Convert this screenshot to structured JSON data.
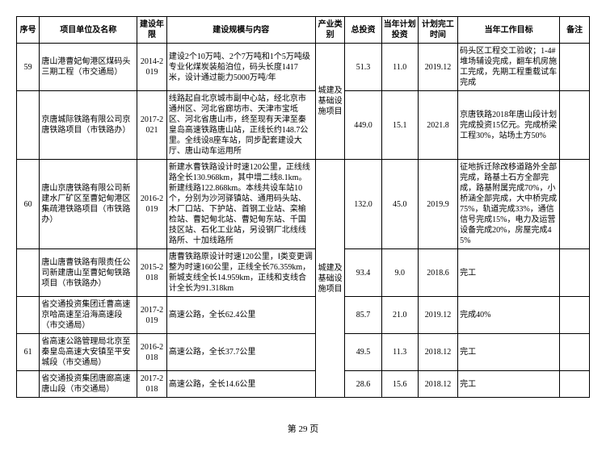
{
  "headers": {
    "seq": "序号",
    "name": "项目单位及名称",
    "year": "建设年限",
    "content": "建设规模与内容",
    "cat": "产业类别",
    "inv": "总投资",
    "plan": "当年计划投资",
    "time": "计划完工时间",
    "goal": "当年工作目标",
    "note": "备注"
  },
  "rows": [
    {
      "seq": "59",
      "name": "唐山港曹妃甸港区煤码头三期工程（市交通局）",
      "year": "2014-2019",
      "content": "建设2个10万吨、2个7万吨和1个5万吨级专业化煤炭装船泊位，码头长度1417米，设计通过能力5000万吨/年",
      "cat_rowspan": 2,
      "cat": "城建及基础设施项目",
      "inv": "51.3",
      "plan": "11.0",
      "time": "2019.12",
      "goal": "码头区工程交工验收；1-4#堆场辅设完成，翻车机房施工完成，先期工程重载试车完成"
    },
    {
      "seq": "",
      "name": "京唐城际铁路有限公司京唐铁路项目（市铁路办）",
      "year": "2017-2021",
      "content": "线路起自北京城市副中心站，经北京市通州区、河北省廊坊市、天津市宝坻区、河北省唐山市，终至现有天津至秦皇岛高速铁路唐山站，正线长约148.7公里。全线设8座车站，同步配套建设大厅、唐山动车运用所",
      "inv": "449.0",
      "plan": "15.1",
      "time": "2021.8",
      "goal": "京唐铁路2018年唐山段计划完成投资15亿元。完成桥梁工程30%，站场土方50%"
    },
    {
      "seq": "60",
      "name": "唐山京唐铁路有限公司新建水厂矿区至曹妃甸港区集疏港铁路项目（市铁路办）",
      "year": "2016-2019",
      "content": "新建水曹铁路设计时速120公里，正线线路全长130.968km，其中增二线8.1km。新建线路122.868km。本线共设车站10个，分别为沙河驿镇站、通用码头站、木厂口站、下护站、首钢工业站、栾榆检站、曹妃甸北站、曹妃甸东站、千国技区站、石化工业站，另设钢厂北线线路所、十加线路所",
      "cat_rowspan": 5,
      "cat": "城建及基础设施项目",
      "inv": "132.0",
      "plan": "45.0",
      "time": "2019.9",
      "goal": "征地拆迁除改移道路外全部完成，路基土石方全部完成，路基附属完成70%，小桥涵全部完成，大中桥完成75%，轨道完成33%，通信信号完成15%，电力及运营设备完成20%，房屋完成45%"
    },
    {
      "seq": "",
      "name": "唐山唐曹铁路有限责任公司新建唐山至曹妃甸铁路项目（市铁路办）",
      "year": "2015-2018",
      "content": "唐曹铁路原设计时速120公里，Ⅰ类变更调整为时速160公里，正线全长76.359km，新城支线全长14.959km，正线和支线合计全长为91.318km",
      "inv": "93.4",
      "plan": "9.0",
      "time": "2018.6",
      "goal": "完工"
    },
    {
      "seq": "",
      "name": "省交通投资集团迁曹高速京哈高速至沿海高速段（市交通局）",
      "year": "2017-2019",
      "content": "高速公路，全长62.4公里",
      "inv": "85.7",
      "plan": "21.0",
      "time": "2019.12",
      "goal": "完成40%"
    },
    {
      "seq": "61",
      "name": "省高速公路管理局北京至秦皇岛高速大安镇至平安城段（市交通局）",
      "year": "2016-2018",
      "content": "高速公路，全长37.7公里",
      "inv": "49.5",
      "plan": "11.3",
      "time": "2018.12",
      "goal": "完工"
    },
    {
      "seq": "",
      "name": "省交通投资集团唐廊高速唐山段（市交通局）",
      "year": "2017-2018",
      "content": "高速公路，全长14.6公里",
      "inv": "28.6",
      "plan": "15.6",
      "time": "2018.12",
      "goal": "完工"
    }
  ],
  "footer": "第 29 页"
}
